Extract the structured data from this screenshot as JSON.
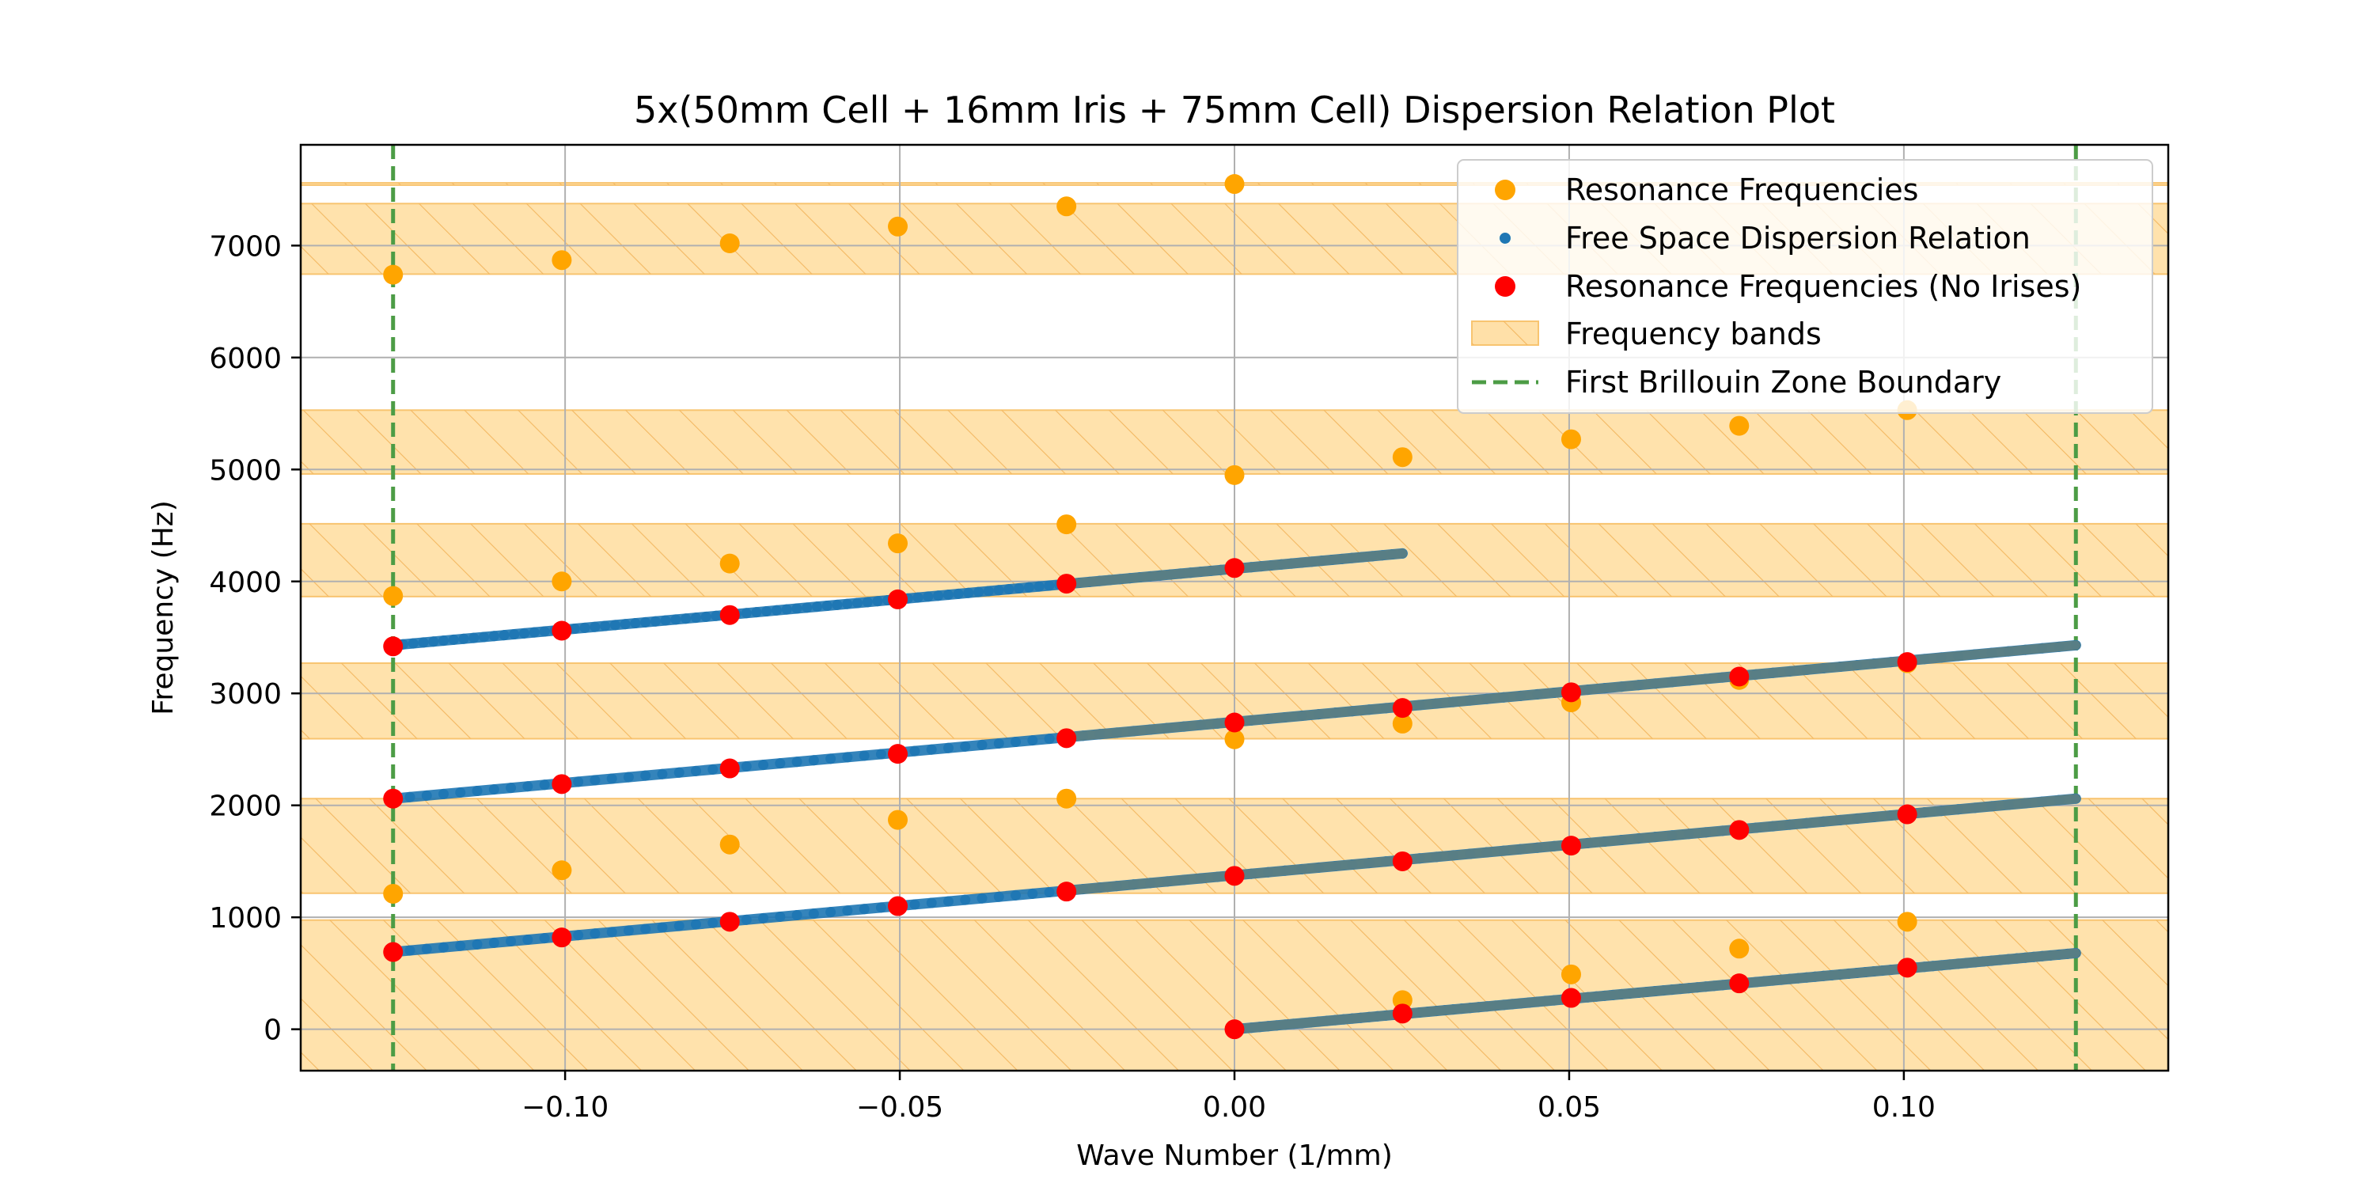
{
  "chart_data": {
    "type": "scatter",
    "title": "5x(50mm Cell + 16mm Iris + 75mm Cell) Dispersion Relation Plot",
    "xlabel": "Wave Number (1/mm)",
    "ylabel": "Frequency (Hz)",
    "xlim": [
      -0.1395,
      0.1395
    ],
    "ylim": [
      -370,
      7900
    ],
    "xticks": [
      -0.1,
      -0.05,
      0.0,
      0.05,
      0.1
    ],
    "xtick_labels": [
      "−0.10",
      "−0.05",
      "0.00",
      "0.05",
      "0.10"
    ],
    "yticks": [
      0,
      1000,
      2000,
      3000,
      4000,
      5000,
      6000,
      7000
    ],
    "ytick_labels": [
      "0",
      "1000",
      "2000",
      "3000",
      "4000",
      "5000",
      "6000",
      "7000"
    ],
    "grid": true,
    "legend_position": "top-right",
    "colors": {
      "resonance": "#ffa500",
      "free_space": "#1f77b4",
      "no_irises": "#ff0000",
      "band_fill": "#ffe0a8",
      "band_edge": "#f8c470",
      "boundary": "#4c9c45",
      "overlap_line": "#5f7f80"
    },
    "brillouin_zone_boundary": [
      -0.1257,
      0.1257
    ],
    "bands": [
      {
        "low": -370,
        "high": 975
      },
      {
        "low": 1215,
        "high": 2060
      },
      {
        "low": 2595,
        "high": 3270
      },
      {
        "low": 3865,
        "high": 4515
      },
      {
        "low": 4960,
        "high": 5530
      },
      {
        "low": 6745,
        "high": 7375
      },
      {
        "low": 7540,
        "high": 7560
      }
    ],
    "series": [
      {
        "name": "Resonance Frequencies",
        "kind": "scatter",
        "points": [
          [
            -0.1257,
            6740
          ],
          [
            -0.1005,
            6870
          ],
          [
            -0.0754,
            7020
          ],
          [
            -0.0503,
            7170
          ],
          [
            -0.0251,
            7350
          ],
          [
            0.0,
            7550
          ],
          [
            -0.1257,
            3870
          ],
          [
            -0.1005,
            4000
          ],
          [
            -0.0754,
            4160
          ],
          [
            -0.0503,
            4340
          ],
          [
            -0.0251,
            4510
          ],
          [
            0.0,
            4950
          ],
          [
            0.0251,
            5110
          ],
          [
            0.0503,
            5270
          ],
          [
            0.0754,
            5390
          ],
          [
            0.1005,
            5530
          ],
          [
            0.0,
            2590
          ],
          [
            0.0251,
            2730
          ],
          [
            0.0503,
            2920
          ],
          [
            0.0754,
            3120
          ],
          [
            0.1005,
            3270
          ],
          [
            -0.1257,
            1210
          ],
          [
            -0.1005,
            1420
          ],
          [
            -0.0754,
            1650
          ],
          [
            -0.0503,
            1870
          ],
          [
            -0.0251,
            2060
          ],
          [
            0.0251,
            260
          ],
          [
            0.0503,
            490
          ],
          [
            0.0754,
            720
          ],
          [
            0.1005,
            960
          ]
        ]
      },
      {
        "name": "Free Space Dispersion Relation",
        "kind": "line-dots",
        "segments": [
          {
            "from": [
              -0.1257,
              3430
            ],
            "to": [
              0.0251,
              4250
            ]
          },
          {
            "from": [
              -0.1257,
              2060
            ],
            "to": [
              0.1257,
              3430
            ]
          },
          {
            "from": [
              -0.1257,
              690
            ],
            "to": [
              0.1257,
              2060
            ]
          },
          {
            "from": [
              0.0,
              0
            ],
            "to": [
              0.1257,
              680
            ]
          }
        ]
      },
      {
        "name": "Resonance Frequencies (No Irises)",
        "kind": "scatter",
        "points": [
          [
            -0.1257,
            3420
          ],
          [
            -0.1005,
            3560
          ],
          [
            -0.0754,
            3700
          ],
          [
            -0.0503,
            3840
          ],
          [
            -0.0251,
            3980
          ],
          [
            0.0,
            4120
          ],
          [
            -0.1257,
            2060
          ],
          [
            -0.1005,
            2190
          ],
          [
            -0.0754,
            2330
          ],
          [
            -0.0503,
            2460
          ],
          [
            -0.0251,
            2600
          ],
          [
            0.0,
            2740
          ],
          [
            0.0251,
            2870
          ],
          [
            0.0503,
            3010
          ],
          [
            0.0754,
            3150
          ],
          [
            0.1005,
            3280
          ],
          [
            -0.1257,
            690
          ],
          [
            -0.1005,
            820
          ],
          [
            -0.0754,
            960
          ],
          [
            -0.0503,
            1100
          ],
          [
            -0.0251,
            1230
          ],
          [
            0.0,
            1370
          ],
          [
            0.0251,
            1500
          ],
          [
            0.0503,
            1640
          ],
          [
            0.0754,
            1780
          ],
          [
            0.1005,
            1920
          ],
          [
            0.0,
            0
          ],
          [
            0.0251,
            140
          ],
          [
            0.0503,
            280
          ],
          [
            0.0754,
            410
          ],
          [
            0.1005,
            550
          ]
        ]
      }
    ],
    "legend": [
      {
        "label": "Resonance Frequencies",
        "marker": "dot-orange"
      },
      {
        "label": "Free Space Dispersion Relation",
        "marker": "dot-blue-small"
      },
      {
        "label": "Resonance Frequencies (No Irises)",
        "marker": "dot-red"
      },
      {
        "label": "Frequency bands",
        "marker": "hatched-patch"
      },
      {
        "label": "First Brillouin Zone Boundary",
        "marker": "dashed-green"
      }
    ]
  }
}
